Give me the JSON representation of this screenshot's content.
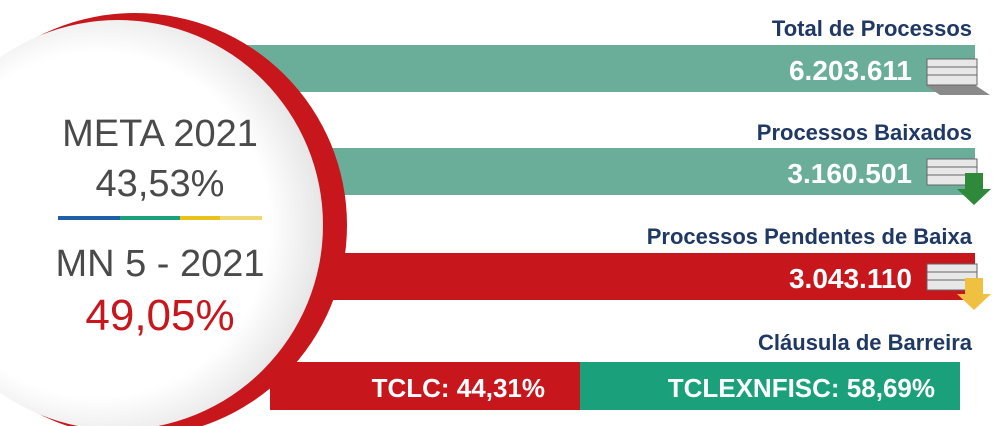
{
  "meta": {
    "label": "META 2021",
    "value": "43,53%"
  },
  "mn": {
    "label": "MN 5 - 2021",
    "value": "49,05%"
  },
  "rows": [
    {
      "title": "Total de Processos",
      "value": "6.203.611"
    },
    {
      "title": "Processos Baixados",
      "value": "3.160.501"
    },
    {
      "title": "Processos Pendentes de Baixa",
      "value": "3.043.110"
    }
  ],
  "barrier": {
    "title": "Cláusula de Barreira",
    "tclc": "TCLC: 44,31%",
    "tclexnfisc": "TCLEXNFISC: 58,69%"
  }
}
